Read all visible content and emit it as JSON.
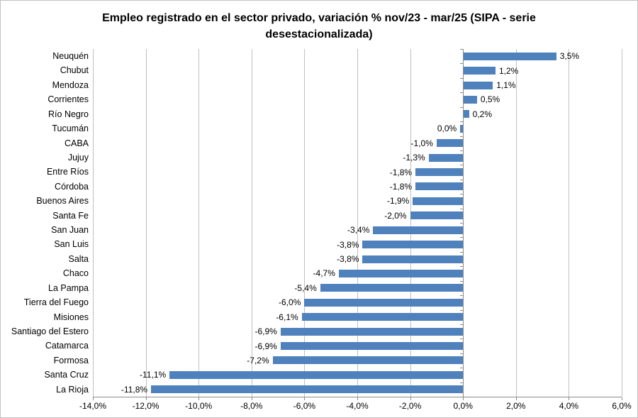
{
  "chart_data": {
    "type": "bar",
    "orientation": "horizontal",
    "title": "Empleo registrado en el sector privado, variación % nov/23 - mar/25 (SIPA - serie desestacionalizada)",
    "title_lines": [
      "Empleo registrado en el sector privado, variación % nov/23 - mar/25 (SIPA - serie",
      "desestacionalizada)"
    ],
    "categories": [
      "Neuquén",
      "Chubut",
      "Mendoza",
      "Corrientes",
      "Río Negro",
      "Tucumán",
      "CABA",
      "Jujuy",
      "Entre Ríos",
      "Córdoba",
      "Buenos Aires",
      "Santa Fe",
      "San Juan",
      "San Luis",
      "Salta",
      "Chaco",
      "La Pampa",
      "Tierra del Fuego",
      "Misiones",
      "Santiago del Estero",
      "Catamarca",
      "Formosa",
      "Santa Cruz",
      "La Rioja"
    ],
    "values": [
      3.5,
      1.2,
      1.1,
      0.5,
      0.2,
      0.0,
      -1.0,
      -1.3,
      -1.8,
      -1.8,
      -1.9,
      -2.0,
      -3.4,
      -3.8,
      -3.8,
      -4.7,
      -5.4,
      -6.0,
      -6.1,
      -6.9,
      -6.9,
      -7.2,
      -11.1,
      -11.8
    ],
    "data_labels": [
      "3,5%",
      "1,2%",
      "1,1%",
      "0,5%",
      "0,2%",
      "0,0%",
      "-1,0%",
      "-1,3%",
      "-1,8%",
      "-1,8%",
      "-1,9%",
      "-2,0%",
      "-3,4%",
      "-3,8%",
      "-3,8%",
      "-4,7%",
      "-5,4%",
      "-6,0%",
      "-6,1%",
      "-6,9%",
      "-6,9%",
      "-7,2%",
      "-11,1%",
      "-11,8%"
    ],
    "xlabel": "",
    "ylabel": "",
    "xlim": [
      -14,
      6
    ],
    "x_ticks": [
      -14,
      -12,
      -10,
      -8,
      -6,
      -4,
      -2,
      0,
      2,
      4,
      6
    ],
    "x_tick_labels": [
      "-14,0%",
      "-12,0%",
      "-10,0%",
      "-8,0%",
      "-6,0%",
      "-4,0%",
      "-2,0%",
      "0,0%",
      "2,0%",
      "4,0%",
      "6,0%"
    ],
    "grid": true,
    "legend": false,
    "bar_color": "#4F81BD",
    "gridline_color": "#bfbfbf",
    "axis_color": "#8c8c8c"
  }
}
